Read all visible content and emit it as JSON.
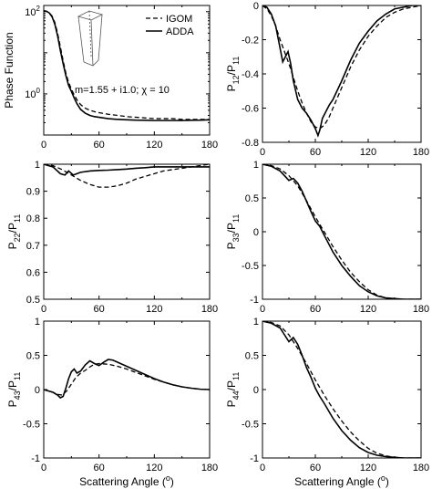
{
  "chart_data": [
    {
      "type": "line",
      "id": "p11",
      "ylabel": "Phase Function",
      "xlabel": "",
      "xlim": [
        0,
        180
      ],
      "ylim_log10": [
        -1,
        2.15
      ],
      "yscale": "log",
      "x_ticks": [
        "0",
        "60",
        "120",
        "180"
      ],
      "x_tick_values": [
        0,
        60,
        120,
        180
      ],
      "x_minor_ticks": [
        30,
        90,
        150
      ],
      "y_ticks": [
        {
          "base": "10",
          "exp": "2",
          "log": 2
        },
        {
          "base": "10",
          "exp": "0",
          "log": 0
        }
      ],
      "legend": [
        {
          "label": "IGOM",
          "style": "dashed"
        },
        {
          "label": "ADDA",
          "style": "solid"
        }
      ],
      "annotation": "m=1.55 + i1.0; χ = 10",
      "series": [
        {
          "name": "IGOM",
          "style": "dashed",
          "x": [
            0,
            3,
            6,
            9,
            12,
            15,
            18,
            21,
            24,
            27,
            30,
            33,
            36,
            40,
            45,
            50,
            55,
            60,
            70,
            80,
            90,
            100,
            110,
            120,
            130,
            140,
            150,
            160,
            170,
            180
          ],
          "y": [
            105,
            102,
            95,
            78,
            55,
            30,
            14,
            6.5,
            3.2,
            1.9,
            1.3,
            0.95,
            0.72,
            0.55,
            0.45,
            0.4,
            0.37,
            0.35,
            0.32,
            0.3,
            0.28,
            0.27,
            0.26,
            0.25,
            0.25,
            0.25,
            0.24,
            0.24,
            0.24,
            0.24
          ]
        },
        {
          "name": "ADDA",
          "style": "solid",
          "x": [
            0,
            3,
            6,
            9,
            12,
            15,
            18,
            21,
            24,
            27,
            30,
            33,
            36,
            40,
            45,
            50,
            55,
            60,
            70,
            80,
            90,
            100,
            110,
            120,
            130,
            140,
            150,
            160,
            170,
            180
          ],
          "y": [
            105,
            102,
            93,
            75,
            50,
            26,
            11.5,
            5.5,
            2.8,
            1.6,
            1.15,
            0.8,
            0.58,
            0.42,
            0.34,
            0.3,
            0.28,
            0.27,
            0.25,
            0.24,
            0.235,
            0.23,
            0.228,
            0.225,
            0.225,
            0.225,
            0.225,
            0.228,
            0.23,
            0.235
          ]
        }
      ]
    },
    {
      "type": "line",
      "id": "p12",
      "ylabel": "P12/P11",
      "ylabel_main": "P",
      "ylabel_sub1": "12",
      "ylabel_mid": "/P",
      "ylabel_sub2": "11",
      "xlabel": "",
      "xlim": [
        0,
        180
      ],
      "ylim": [
        -0.8,
        0
      ],
      "x_ticks": [
        "0",
        "60",
        "120",
        "180"
      ],
      "x_tick_values": [
        0,
        60,
        120,
        180
      ],
      "x_minor_ticks": [
        30,
        90,
        150
      ],
      "y_ticks": [
        "0",
        "-0.2",
        "-0.4",
        "-0.6",
        "-0.8"
      ],
      "y_tick_values": [
        0,
        -0.2,
        -0.4,
        -0.6,
        -0.8
      ],
      "series": [
        {
          "name": "IGOM",
          "style": "dashed",
          "x": [
            0,
            5,
            10,
            15,
            20,
            25,
            30,
            35,
            40,
            45,
            50,
            55,
            60,
            65,
            70,
            75,
            80,
            90,
            100,
            110,
            120,
            130,
            140,
            150,
            160,
            170,
            180
          ],
          "y": [
            0,
            -0.02,
            -0.06,
            -0.12,
            -0.2,
            -0.27,
            -0.34,
            -0.42,
            -0.5,
            -0.57,
            -0.63,
            -0.68,
            -0.71,
            -0.72,
            -0.7,
            -0.66,
            -0.6,
            -0.48,
            -0.36,
            -0.26,
            -0.18,
            -0.12,
            -0.07,
            -0.04,
            -0.02,
            -0.01,
            0
          ]
        },
        {
          "name": "ADDA",
          "style": "solid",
          "x": [
            0,
            5,
            10,
            15,
            20,
            23,
            26,
            29,
            32,
            35,
            40,
            45,
            50,
            55,
            60,
            63,
            65,
            68,
            72,
            76,
            80,
            90,
            100,
            110,
            120,
            130,
            140,
            150,
            160,
            170,
            180
          ],
          "y": [
            0,
            -0.01,
            -0.05,
            -0.12,
            -0.25,
            -0.33,
            -0.3,
            -0.27,
            -0.34,
            -0.44,
            -0.55,
            -0.6,
            -0.63,
            -0.67,
            -0.72,
            -0.76,
            -0.73,
            -0.66,
            -0.62,
            -0.58,
            -0.55,
            -0.44,
            -0.32,
            -0.22,
            -0.15,
            -0.09,
            -0.05,
            -0.02,
            -0.01,
            0,
            0
          ]
        }
      ]
    },
    {
      "type": "line",
      "id": "p22",
      "ylabel": "P22/P11",
      "ylabel_main": "P",
      "ylabel_sub1": "22",
      "ylabel_mid": "/P",
      "ylabel_sub2": "11",
      "xlabel": "",
      "xlim": [
        0,
        180
      ],
      "ylim": [
        0.5,
        1
      ],
      "x_ticks": [
        "0",
        "60",
        "120",
        "180"
      ],
      "x_tick_values": [
        0,
        60,
        120,
        180
      ],
      "x_minor_ticks": [
        30,
        90,
        150
      ],
      "y_ticks": [
        "1",
        "0.9",
        "0.8",
        "0.7",
        "0.6",
        "0.5"
      ],
      "y_tick_values": [
        1,
        0.9,
        0.8,
        0.7,
        0.6,
        0.5
      ],
      "series": [
        {
          "name": "IGOM",
          "style": "dashed",
          "x": [
            0,
            10,
            20,
            30,
            40,
            50,
            60,
            70,
            80,
            90,
            100,
            110,
            120,
            130,
            140,
            150,
            160,
            170,
            180
          ],
          "y": [
            1,
            0.995,
            0.98,
            0.96,
            0.94,
            0.925,
            0.915,
            0.915,
            0.92,
            0.93,
            0.945,
            0.955,
            0.965,
            0.975,
            0.98,
            0.985,
            0.99,
            0.995,
            1
          ]
        },
        {
          "name": "ADDA",
          "style": "solid",
          "x": [
            0,
            10,
            18,
            23,
            27,
            32,
            36,
            40,
            50,
            60,
            70,
            80,
            90,
            100,
            110,
            120,
            130,
            140,
            150,
            160,
            170,
            180
          ],
          "y": [
            1,
            0.99,
            0.965,
            0.96,
            0.975,
            0.96,
            0.965,
            0.97,
            0.975,
            0.977,
            0.978,
            0.98,
            0.982,
            0.985,
            0.987,
            0.99,
            0.99,
            0.99,
            0.99,
            0.99,
            0.99,
            0.99
          ]
        }
      ]
    },
    {
      "type": "line",
      "id": "p33",
      "ylabel": "P33/P11",
      "ylabel_main": "P",
      "ylabel_sub1": "33",
      "ylabel_mid": "/P",
      "ylabel_sub2": "11",
      "xlabel": "",
      "xlim": [
        0,
        180
      ],
      "ylim": [
        -1,
        1
      ],
      "x_ticks": [
        "0",
        "60",
        "120",
        "180"
      ],
      "x_tick_values": [
        0,
        60,
        120,
        180
      ],
      "x_minor_ticks": [
        30,
        90,
        150
      ],
      "y_ticks": [
        "1",
        "0.5",
        "0",
        "-0.5",
        "-1"
      ],
      "y_tick_values": [
        1,
        0.5,
        0,
        -0.5,
        -1
      ],
      "series": [
        {
          "name": "IGOM",
          "style": "dashed",
          "x": [
            0,
            10,
            20,
            30,
            40,
            50,
            60,
            70,
            80,
            90,
            100,
            110,
            120,
            130,
            140,
            150,
            160,
            170,
            180
          ],
          "y": [
            1,
            0.98,
            0.93,
            0.83,
            0.68,
            0.46,
            0.22,
            0,
            -0.22,
            -0.42,
            -0.6,
            -0.74,
            -0.86,
            -0.94,
            -0.98,
            -1,
            -1,
            -1,
            -1
          ]
        },
        {
          "name": "ADDA",
          "style": "solid",
          "x": [
            0,
            10,
            20,
            25,
            30,
            35,
            40,
            45,
            50,
            55,
            60,
            65,
            70,
            80,
            90,
            100,
            110,
            120,
            130,
            140,
            150,
            160,
            170,
            180
          ],
          "y": [
            1,
            0.97,
            0.9,
            0.83,
            0.76,
            0.79,
            0.72,
            0.6,
            0.45,
            0.3,
            0.16,
            0.08,
            -0.05,
            -0.3,
            -0.5,
            -0.66,
            -0.8,
            -0.89,
            -0.95,
            -0.98,
            -0.99,
            -1,
            -1,
            -1
          ]
        }
      ]
    },
    {
      "type": "line",
      "id": "p43",
      "ylabel": "P43/P11",
      "ylabel_main": "P",
      "ylabel_sub1": "43",
      "ylabel_mid": "/P",
      "ylabel_sub2": "11",
      "xlabel": "Scattering Angle (°)",
      "xlabel_main": "Scattering Angle (",
      "xlabel_sup": "o",
      "xlabel_end": ")",
      "xlim": [
        0,
        180
      ],
      "ylim": [
        -1,
        1
      ],
      "x_ticks": [
        "0",
        "60",
        "120",
        "180"
      ],
      "x_tick_values": [
        0,
        60,
        120,
        180
      ],
      "x_minor_ticks": [
        30,
        90,
        150
      ],
      "y_ticks": [
        "1",
        "0.5",
        "0",
        "-0.5",
        "-1"
      ],
      "y_tick_values": [
        1,
        0.5,
        0,
        -0.5,
        -1
      ],
      "series": [
        {
          "name": "IGOM",
          "style": "dashed",
          "x": [
            0,
            10,
            15,
            20,
            25,
            30,
            35,
            40,
            45,
            50,
            55,
            60,
            70,
            80,
            90,
            100,
            110,
            120,
            130,
            140,
            150,
            160,
            170,
            180
          ],
          "y": [
            0,
            -0.04,
            -0.07,
            -0.08,
            -0.02,
            0.08,
            0.18,
            0.24,
            0.28,
            0.33,
            0.37,
            0.38,
            0.37,
            0.34,
            0.3,
            0.25,
            0.2,
            0.15,
            0.11,
            0.07,
            0.04,
            0.02,
            0.005,
            0
          ]
        },
        {
          "name": "ADDA",
          "style": "solid",
          "x": [
            0,
            10,
            15,
            18,
            21,
            24,
            27,
            30,
            33,
            36,
            40,
            45,
            50,
            55,
            60,
            65,
            70,
            75,
            80,
            90,
            100,
            110,
            120,
            130,
            140,
            150,
            160,
            170,
            180
          ],
          "y": [
            0,
            -0.04,
            -0.08,
            -0.12,
            -0.1,
            0.02,
            0.16,
            0.26,
            0.3,
            0.24,
            0.27,
            0.36,
            0.42,
            0.38,
            0.35,
            0.4,
            0.44,
            0.43,
            0.4,
            0.34,
            0.28,
            0.22,
            0.16,
            0.11,
            0.07,
            0.04,
            0.02,
            0.005,
            0
          ]
        }
      ]
    },
    {
      "type": "line",
      "id": "p44",
      "ylabel": "P44/P11",
      "ylabel_main": "P",
      "ylabel_sub1": "44",
      "ylabel_mid": "/P",
      "ylabel_sub2": "11",
      "xlabel": "Scattering Angle (°)",
      "xlabel_main": "Scattering Angle (",
      "xlabel_sup": "o",
      "xlabel_end": ")",
      "xlim": [
        0,
        180
      ],
      "ylim": [
        -1,
        1
      ],
      "x_ticks": [
        "0",
        "60",
        "120",
        "180"
      ],
      "x_tick_values": [
        0,
        60,
        120,
        180
      ],
      "x_minor_ticks": [
        30,
        90,
        150
      ],
      "y_ticks": [
        "1",
        "0.5",
        "0",
        "-0.5",
        "-1"
      ],
      "y_tick_values": [
        1,
        0.5,
        0,
        -0.5,
        -1
      ],
      "series": [
        {
          "name": "IGOM",
          "style": "dashed",
          "x": [
            0,
            10,
            20,
            30,
            40,
            50,
            60,
            70,
            80,
            90,
            100,
            110,
            120,
            130,
            140,
            150,
            160,
            170,
            180
          ],
          "y": [
            1,
            0.98,
            0.93,
            0.8,
            0.6,
            0.38,
            0.14,
            -0.08,
            -0.28,
            -0.46,
            -0.62,
            -0.75,
            -0.86,
            -0.93,
            -0.97,
            -0.99,
            -1,
            -1,
            -1
          ]
        },
        {
          "name": "ADDA",
          "style": "solid",
          "x": [
            0,
            10,
            20,
            25,
            30,
            35,
            40,
            45,
            50,
            55,
            60,
            65,
            70,
            80,
            90,
            100,
            110,
            120,
            130,
            140,
            150,
            160,
            170,
            180
          ],
          "y": [
            1,
            0.97,
            0.9,
            0.8,
            0.7,
            0.76,
            0.66,
            0.5,
            0.32,
            0.18,
            0.02,
            -0.1,
            -0.2,
            -0.42,
            -0.6,
            -0.74,
            -0.85,
            -0.92,
            -0.96,
            -0.98,
            -0.99,
            -1,
            -1,
            -1
          ]
        }
      ]
    }
  ]
}
